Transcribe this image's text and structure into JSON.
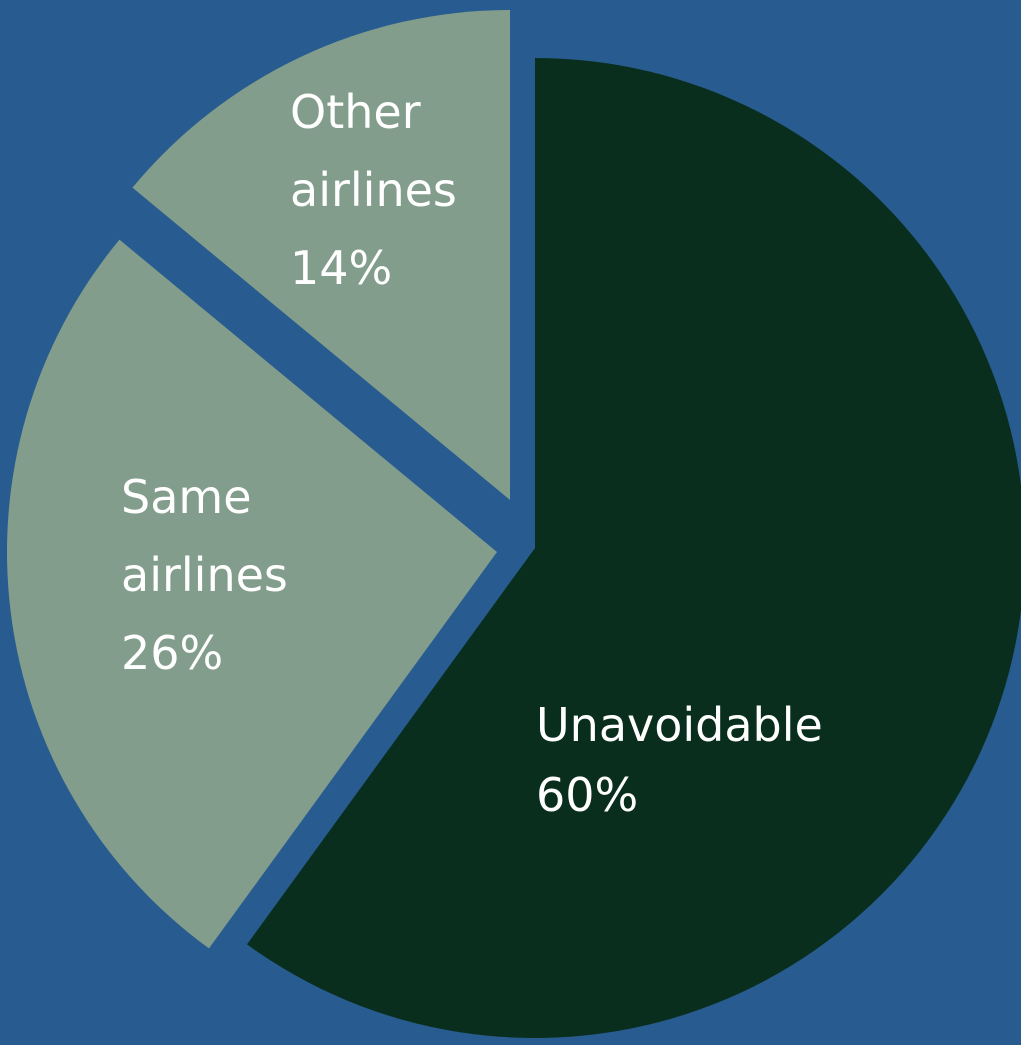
{
  "colors": {
    "background": "#285b8f",
    "slice_dark": "#0a2e1e",
    "slice_light": "#829d8b",
    "label_text": "#ffffff"
  },
  "chart_data": {
    "type": "pie",
    "categories": [
      "Unavoidable",
      "Same airlines",
      "Other airlines"
    ],
    "values": [
      60,
      26,
      14
    ],
    "slices": [
      {
        "label": "Unavoidable",
        "value_label": "60%",
        "value": 60,
        "color": "#0a2e1e"
      },
      {
        "label": "Same airlines",
        "value_label": "26%",
        "value": 26,
        "color": "#829d8b"
      },
      {
        "label": "Other airlines",
        "value_label": "14%",
        "value": 14,
        "color": "#829d8b"
      }
    ],
    "legend": "none",
    "exploded": true
  }
}
